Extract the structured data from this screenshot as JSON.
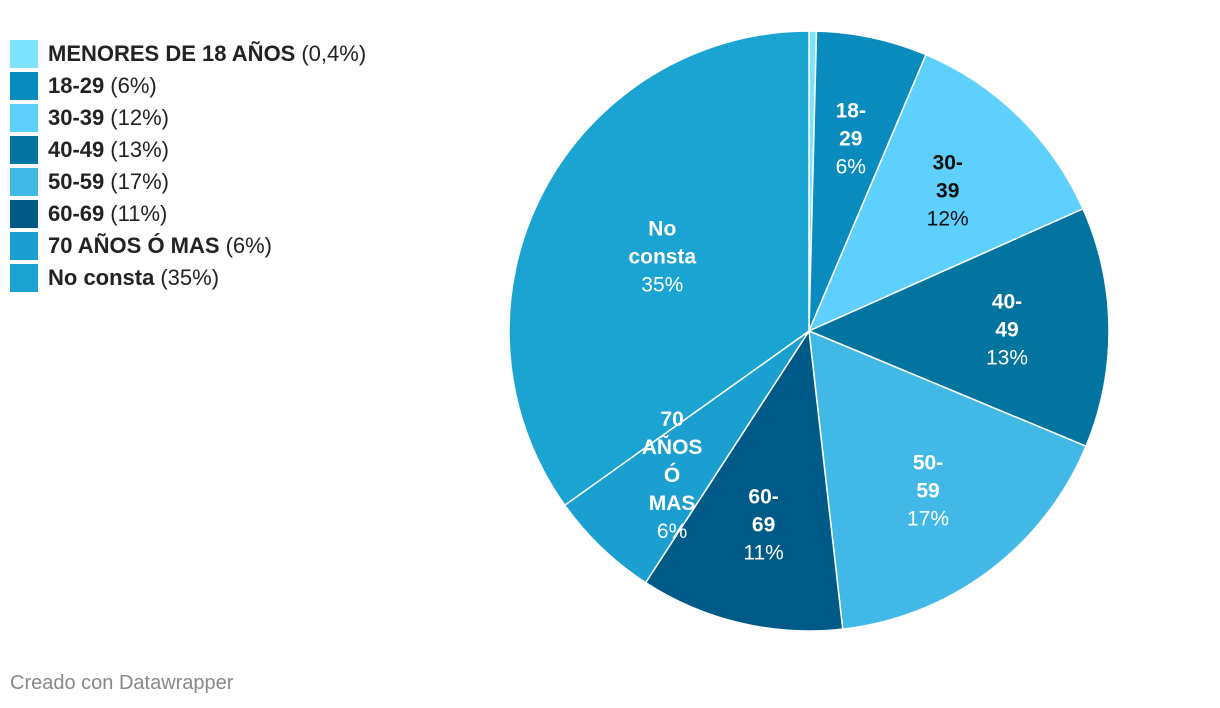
{
  "chart_data": {
    "type": "pie",
    "slices": [
      {
        "name": "MENORES DE 18 AÑOS",
        "value": 0.4,
        "label": "0,4%",
        "color": "#7ee3ff",
        "text_color": "#ffffff",
        "show_label": false
      },
      {
        "name": "18-29",
        "value": 6,
        "label": "6%",
        "color": "#0a8bbd",
        "text_color": "#ffffff",
        "show_label": true
      },
      {
        "name": "30-39",
        "value": 12,
        "label": "12%",
        "color": "#5fcffd",
        "text_color": "#111111",
        "show_label": true
      },
      {
        "name": "40-49",
        "value": 13,
        "label": "13%",
        "color": "#03749f",
        "text_color": "#ffffff",
        "show_label": true
      },
      {
        "name": "50-59",
        "value": 17,
        "label": "17%",
        "color": "#42b8e6",
        "text_color": "#ffffff",
        "show_label": true
      },
      {
        "name": "60-69",
        "value": 11,
        "label": "11%",
        "color": "#005a87",
        "text_color": "#ffffff",
        "show_label": true
      },
      {
        "name": "70 AÑOS Ó MAS",
        "value": 6,
        "label": "6%",
        "color": "#1a9fd0",
        "text_color": "#ffffff",
        "show_label": true
      },
      {
        "name": "No consta",
        "value": 35,
        "label": "35%",
        "color": "#1ba3d1",
        "text_color": "#ffffff",
        "show_label": true
      }
    ],
    "legend_position": "top-left"
  },
  "footer": {
    "credit": "Creado con Datawrapper"
  }
}
